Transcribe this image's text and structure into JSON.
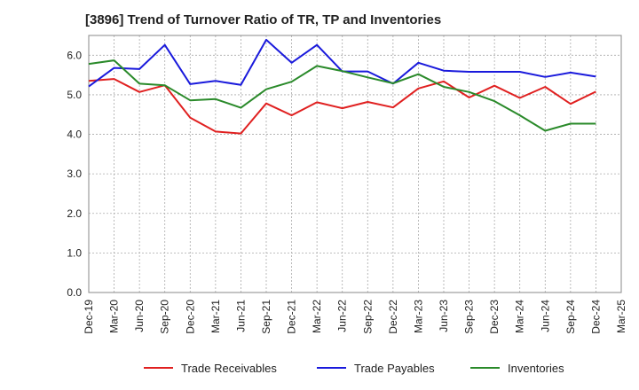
{
  "chart_data": {
    "type": "line",
    "title": "[3896]  Trend of Turnover Ratio of TR, TP and Inventories",
    "xlabel": "",
    "ylabel": "",
    "ylim": [
      0,
      6.5
    ],
    "yticks": [
      "0.0",
      "1.0",
      "2.0",
      "3.0",
      "4.0",
      "5.0",
      "6.0"
    ],
    "ytick_values": [
      0,
      1,
      2,
      3,
      4,
      5,
      6
    ],
    "x": [
      "Dec-19",
      "Mar-20",
      "Jun-20",
      "Sep-20",
      "Dec-20",
      "Mar-21",
      "Jun-21",
      "Sep-21",
      "Dec-21",
      "Mar-22",
      "Jun-22",
      "Sep-22",
      "Dec-22",
      "Mar-23",
      "Jun-23",
      "Sep-23",
      "Dec-23",
      "Mar-24",
      "Jun-24",
      "Sep-24",
      "Dec-24",
      "Mar-25"
    ],
    "xtick_labels": [
      "Dec-19",
      "Mar-20",
      "Jun-20",
      "Sep-20",
      "Dec-20",
      "Mar-21",
      "Jun-21",
      "Sep-21",
      "Dec-21",
      "Mar-22",
      "Jun-22",
      "Sep-22",
      "Dec-22",
      "Mar-23",
      "Jun-23",
      "Sep-23",
      "Dec-23",
      "Mar-24",
      "Jun-24",
      "Sep-24",
      "Dec-24",
      "Mar-25"
    ],
    "grid": true,
    "legend_position": "bottom",
    "series": [
      {
        "name": "Trade Receivables",
        "color": "#e02020",
        "values": [
          5.35,
          5.4,
          5.07,
          5.24,
          4.42,
          4.07,
          4.02,
          4.78,
          4.48,
          4.81,
          4.66,
          4.82,
          4.68,
          5.16,
          5.34,
          4.93,
          5.23,
          4.92,
          5.2,
          4.77,
          5.08,
          null
        ]
      },
      {
        "name": "Trade Payables",
        "color": "#1a1adc",
        "values": [
          5.21,
          5.68,
          5.65,
          6.26,
          5.27,
          5.35,
          5.25,
          6.39,
          5.81,
          6.26,
          5.59,
          5.59,
          5.28,
          5.81,
          5.61,
          5.58,
          5.58,
          5.58,
          5.45,
          5.56,
          5.46,
          null
        ]
      },
      {
        "name": "Inventories",
        "color": "#2a8a2a",
        "values": [
          5.78,
          5.87,
          5.28,
          5.24,
          4.86,
          4.89,
          4.67,
          5.14,
          5.33,
          5.73,
          5.6,
          5.44,
          5.29,
          5.52,
          5.2,
          5.07,
          4.84,
          4.48,
          4.09,
          4.27,
          4.27,
          null
        ]
      }
    ]
  }
}
